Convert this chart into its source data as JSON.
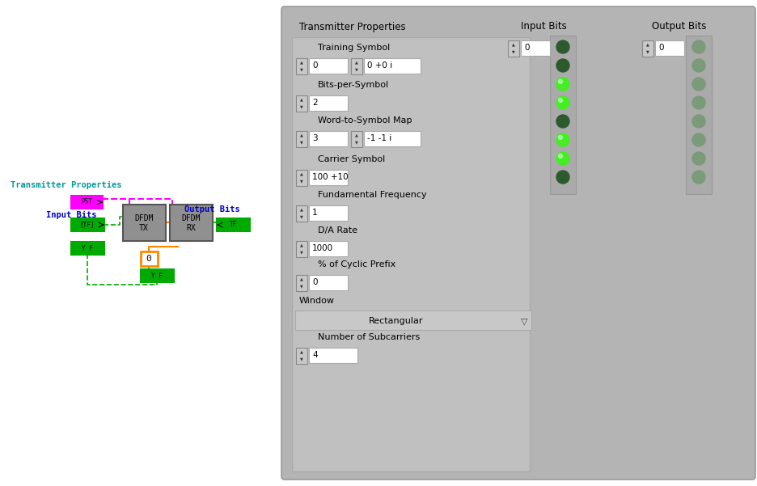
{
  "colors": {
    "white": "#ffffff",
    "magenta": "#ff00ff",
    "green": "#00aa00",
    "bright_green": "#33dd00",
    "orange": "#ff8800",
    "dark_green_led": "#2d5a2d",
    "bright_green_led": "#44ee22",
    "dim_led": "#7a9a7a",
    "text_blue": "#0000cc",
    "text_teal": "#009999",
    "gray_box": "#888888",
    "panel_bg": "#b4b4b4",
    "inner_panel_bg": "#c0c0c0",
    "led_bg": "#aaaaaa",
    "spinner_bg": "#c0c0c0"
  },
  "left_diagram": {
    "transmitter_label": "Transmitter Properties",
    "input_bits_label": "Input Bits",
    "output_bits_label": "Output Bits"
  },
  "right_ui": {
    "panel_title": "Transmitter Properties",
    "fields": [
      {
        "label": "Training Symbol",
        "values": [
          "0",
          "0 +0 i"
        ],
        "has_second": true
      },
      {
        "label": "Bits-per-Symbol",
        "values": [
          "2"
        ],
        "has_second": false
      },
      {
        "label": "Word-to-Symbol Map",
        "values": [
          "3",
          "-1 -1 i"
        ],
        "has_second": true
      },
      {
        "label": "Carrier Symbol",
        "values": [
          "100 +10"
        ],
        "has_second": false
      },
      {
        "label": "Fundamental Frequency",
        "values": [
          "1"
        ],
        "has_second": false
      },
      {
        "label": "D/A Rate",
        "values": [
          "1000"
        ],
        "has_second": false
      },
      {
        "label": "% of Cyclic Prefix",
        "values": [
          "0"
        ],
        "has_second": false
      }
    ],
    "window_label": "Window",
    "window_value": "Rectangular",
    "subcarriers_label": "Number of Subcarriers",
    "subcarriers_value": "4",
    "input_bits_label": "Input Bits",
    "output_bits_label": "Output Bits",
    "input_num": "0",
    "output_num": "0",
    "input_leds": [
      false,
      false,
      true,
      true,
      false,
      true,
      true,
      false
    ],
    "output_leds": [
      false,
      false,
      false,
      false,
      false,
      false,
      false,
      false
    ]
  }
}
